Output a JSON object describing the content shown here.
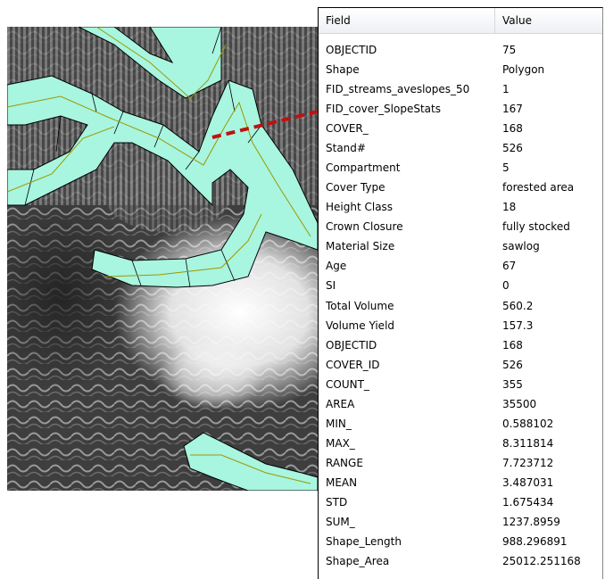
{
  "table": {
    "header": [
      "Field",
      "Value"
    ],
    "rows": [
      [
        "OBJECTID",
        "75"
      ],
      [
        "Shape",
        "Polygon"
      ],
      [
        "FID_streams_aveslopes_50",
        "1"
      ],
      [
        "FID_cover_SlopeStats",
        "167"
      ],
      [
        "COVER_",
        "168"
      ],
      [
        "Stand#",
        "526"
      ],
      [
        "Compartment",
        "5"
      ],
      [
        "Cover Type",
        "forested area"
      ],
      [
        "Height Class",
        "18"
      ],
      [
        "Crown Closure",
        "fully stocked"
      ],
      [
        "Material Size",
        "sawlog"
      ],
      [
        "Age",
        "67"
      ],
      [
        "SI",
        "0"
      ],
      [
        "Total Volume",
        "560.2"
      ],
      [
        "Volume Yield",
        "157.3"
      ],
      [
        "OBJECTID",
        "168"
      ],
      [
        "COVER_ID",
        "526"
      ],
      [
        "COUNT_",
        "355"
      ],
      [
        "AREA",
        "35500"
      ],
      [
        "MIN_",
        "0.588102"
      ],
      [
        "MAX_",
        "8.311814"
      ],
      [
        "RANGE",
        "7.723712"
      ],
      [
        "MEAN",
        "3.487031"
      ],
      [
        "STD",
        "1.675434"
      ],
      [
        "SUM_",
        "1237.8959"
      ],
      [
        "Shape_Length",
        "988.296891"
      ],
      [
        "Shape_Area",
        "25012.251168"
      ]
    ]
  }
}
